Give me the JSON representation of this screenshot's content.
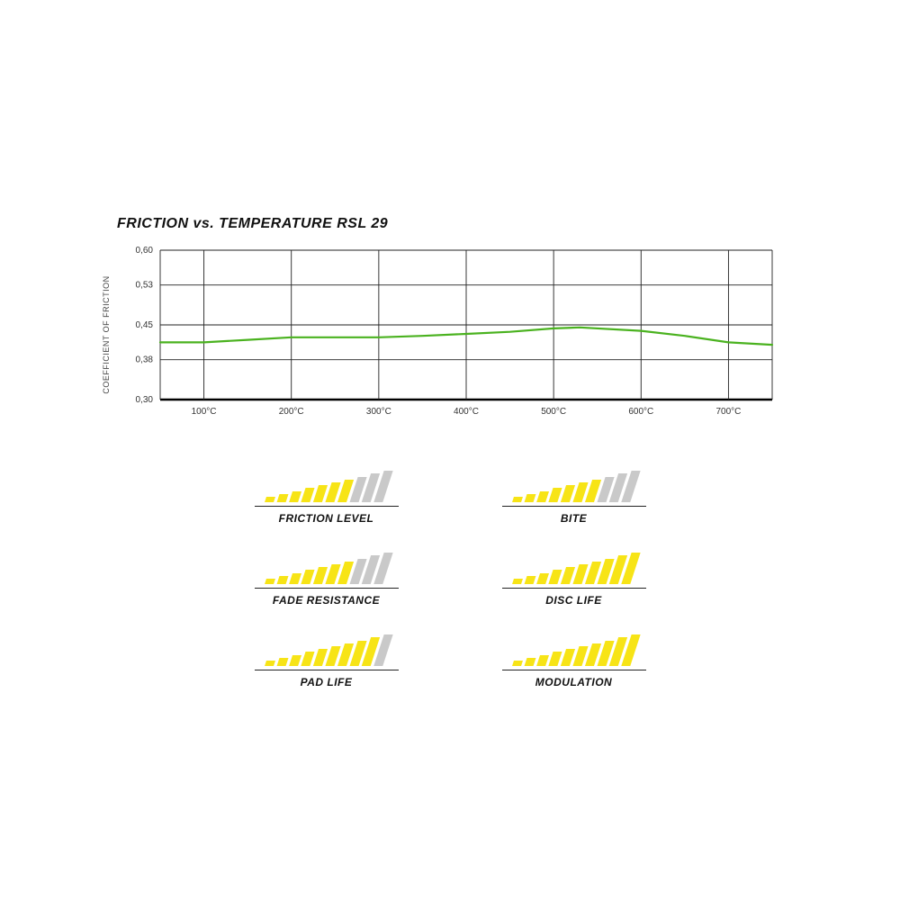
{
  "chart": {
    "type": "line",
    "title": "FRICTION vs. TEMPERATURE RSL 29",
    "ylabel": "COEFFICIENT OF FRICTION",
    "title_fontsize": 16,
    "label_fontsize": 9,
    "background_color": "#ffffff",
    "grid_color": "#222222",
    "axis_color": "#000000",
    "line_color": "#4ab21f",
    "line_width": 2.2,
    "ylim": [
      0.3,
      0.6
    ],
    "yticks": [
      0.3,
      0.38,
      0.45,
      0.53,
      0.6
    ],
    "ytick_labels": [
      "0,30",
      "0,38",
      "0,45",
      "0,53",
      "0,60"
    ],
    "xtick_labels": [
      "100°C",
      "200°C",
      "300°C",
      "400°C",
      "500°C",
      "600°C",
      "700°C"
    ],
    "x_values": [
      50,
      100,
      150,
      200,
      250,
      300,
      350,
      400,
      450,
      500,
      530,
      600,
      650,
      700,
      750
    ],
    "y_values": [
      0.415,
      0.415,
      0.42,
      0.425,
      0.425,
      0.425,
      0.428,
      0.432,
      0.436,
      0.443,
      0.445,
      0.438,
      0.428,
      0.415,
      0.41
    ]
  },
  "ratings": {
    "max_bars": 10,
    "bar_active_color": "#f7e416",
    "bar_inactive_color": "#c9c9c9",
    "items": [
      {
        "label": "FRICTION LEVEL",
        "value": 7
      },
      {
        "label": "BITE",
        "value": 7
      },
      {
        "label": "FADE RESISTANCE",
        "value": 7
      },
      {
        "label": "DISC LIFE",
        "value": 10
      },
      {
        "label": "PAD LIFE",
        "value": 9
      },
      {
        "label": "MODULATION",
        "value": 10
      }
    ],
    "label_fontsize": 12
  }
}
